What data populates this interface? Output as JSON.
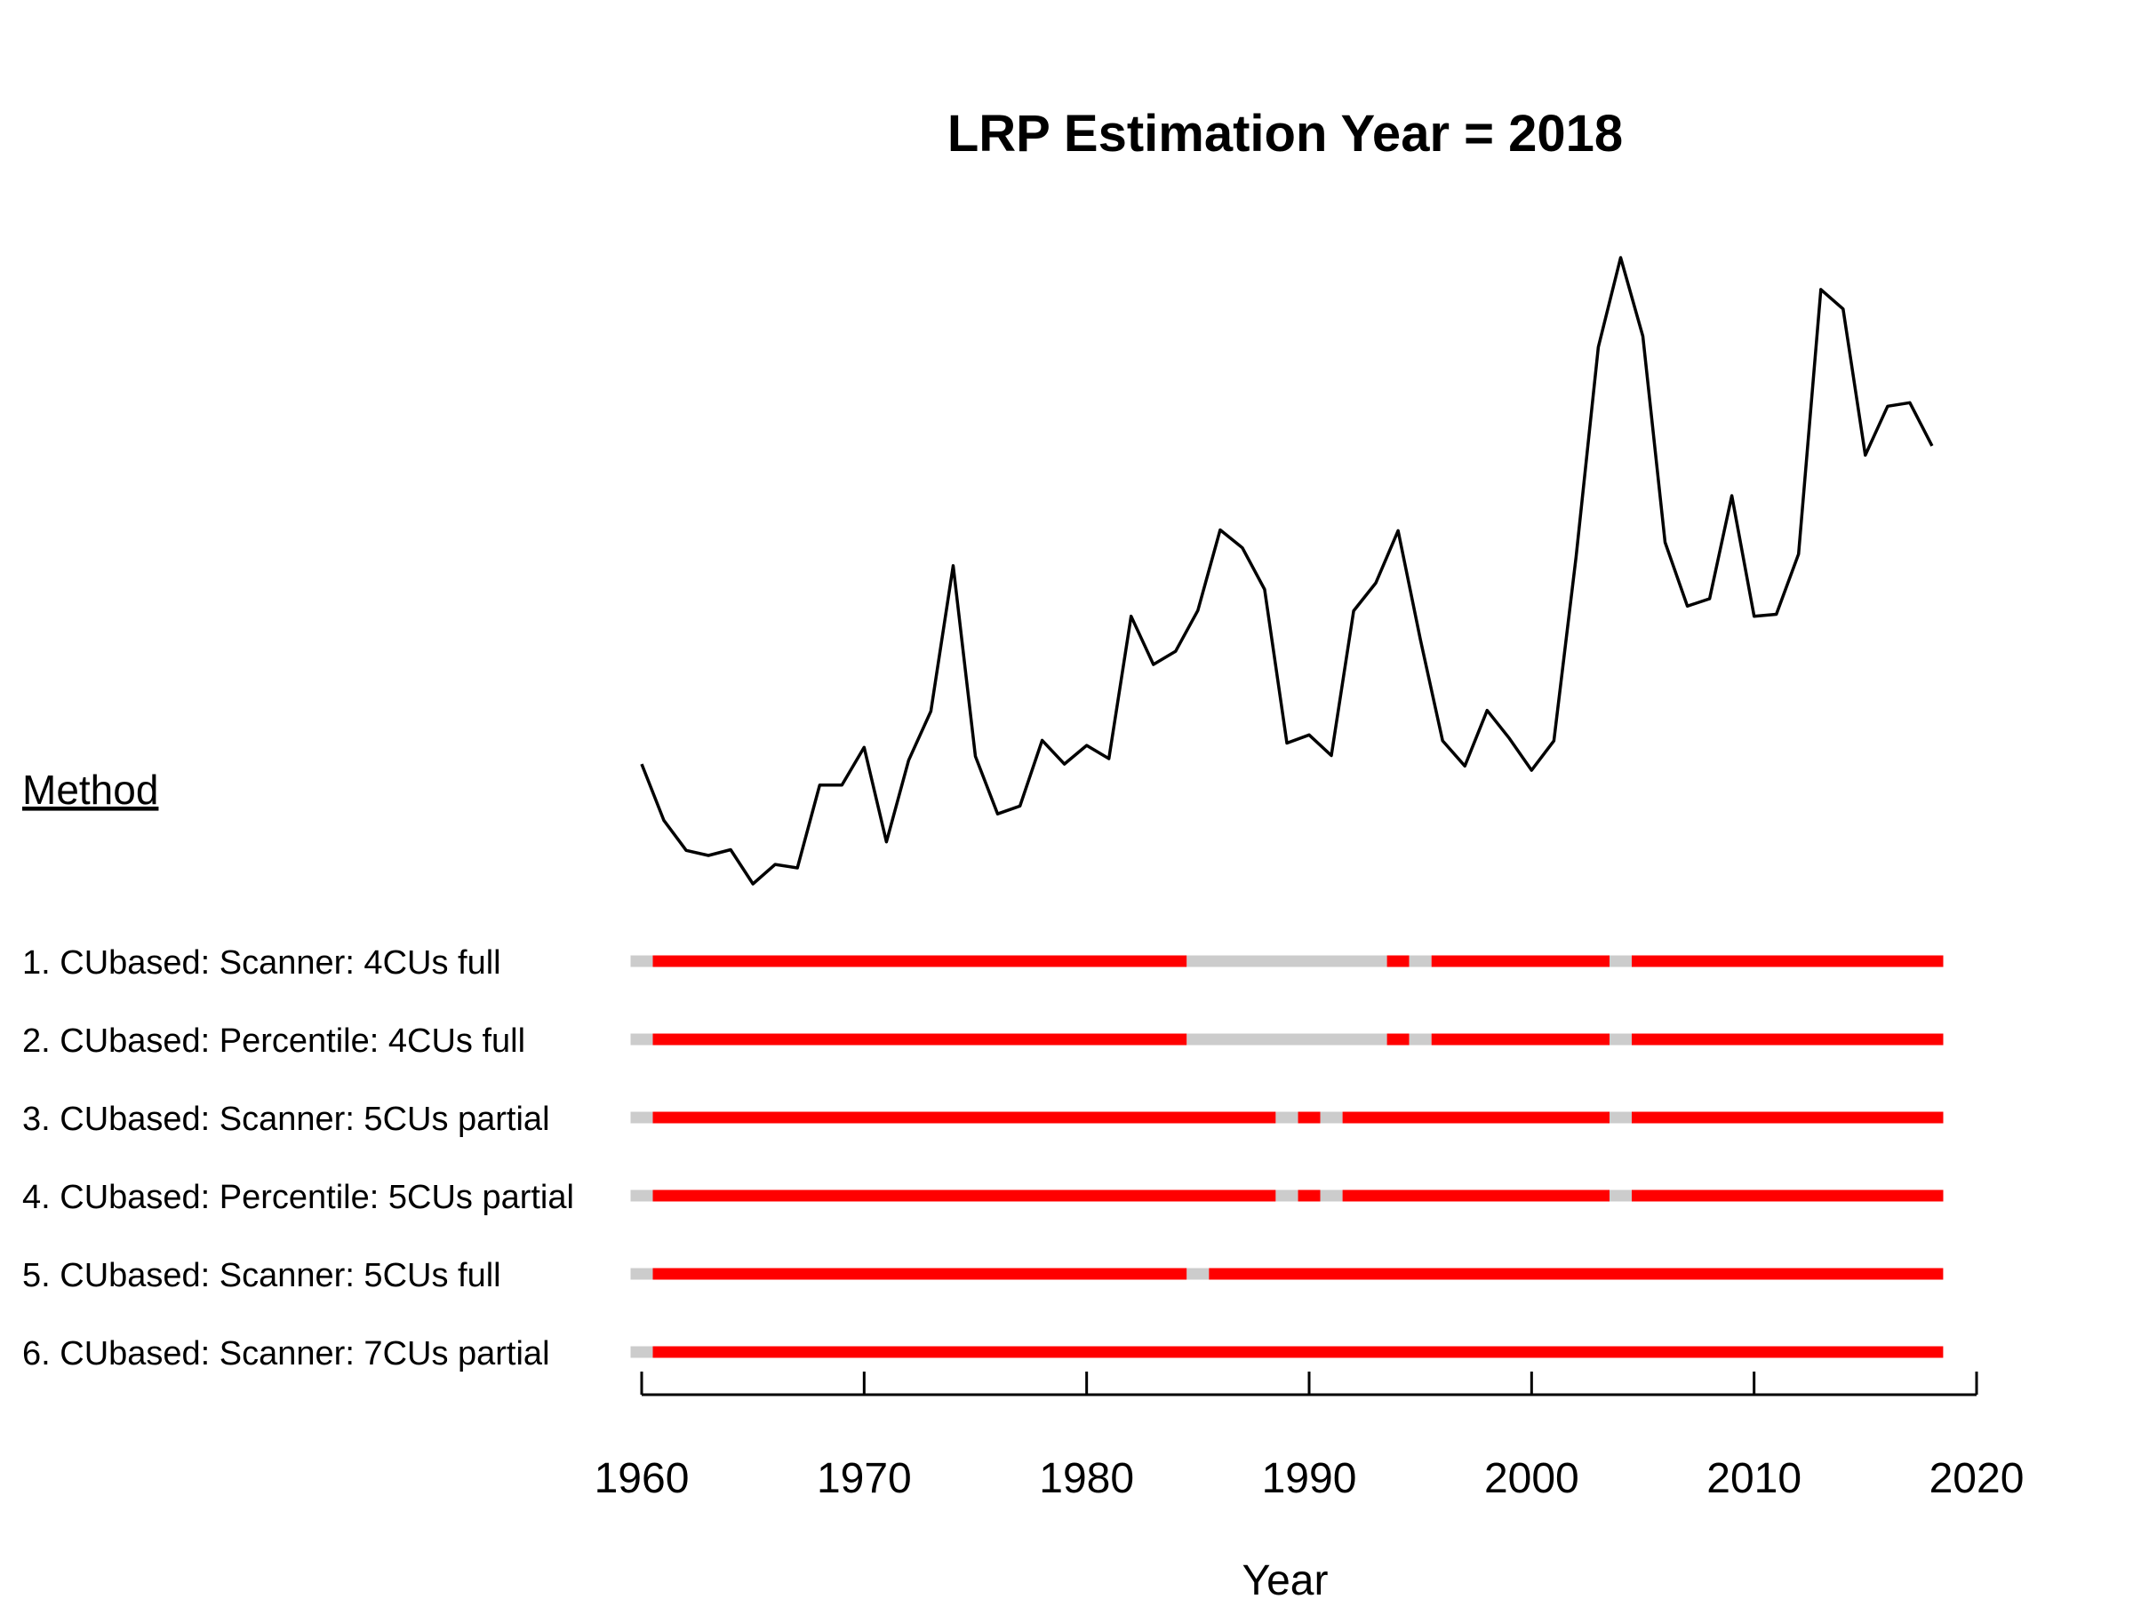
{
  "chart_data": {
    "type": "line",
    "title": "LRP Estimation Year = 2018",
    "xlabel": "Year",
    "ylabel": "",
    "xlim": [
      1960,
      2020
    ],
    "xticks": [
      "1960",
      "1970",
      "1980",
      "1990",
      "2000",
      "2010",
      "2020"
    ],
    "grid": false,
    "legend_header": "Method",
    "series": [
      {
        "x": [
          1960,
          1961,
          1962,
          1963,
          1964,
          1965,
          1966,
          1967,
          1968,
          1969,
          1970,
          1971,
          1972,
          1973,
          1974,
          1975,
          1976,
          1977,
          1978,
          1979,
          1980,
          1981,
          1982,
          1983,
          1984,
          1985,
          1986,
          1987,
          1988,
          1989,
          1990,
          1991,
          1992,
          1993,
          1994,
          1995,
          1996,
          1997,
          1998,
          1999,
          2000,
          2001,
          2002,
          2003,
          2004,
          2005,
          2006,
          2007,
          2008,
          2009,
          2010,
          2011,
          2012,
          2013,
          2014,
          2015,
          2016,
          2017,
          2018
        ],
        "values": [
          3.8,
          2.35,
          1.58,
          1.45,
          1.6,
          0.72,
          1.22,
          1.13,
          3.26,
          3.26,
          4.23,
          1.8,
          3.9,
          5.16,
          8.9,
          4.0,
          2.52,
          2.72,
          4.41,
          3.8,
          4.28,
          3.94,
          7.6,
          6.36,
          6.7,
          7.75,
          9.82,
          9.36,
          8.29,
          4.34,
          4.55,
          4.02,
          7.74,
          8.46,
          9.8,
          7.0,
          4.4,
          3.75,
          5.18,
          4.46,
          3.64,
          4.4,
          9.13,
          14.52,
          16.82,
          14.8,
          9.5,
          7.86,
          8.05,
          10.7,
          7.6,
          7.65,
          9.2,
          16.0,
          15.5,
          11.74,
          13.0,
          13.09,
          11.98
        ]
      }
    ],
    "methods": [
      {
        "label": "1. CUbased: Scanner: 4CUs full",
        "segments": [
          {
            "from": 1959.5,
            "to": 1960.5,
            "status": "na"
          },
          {
            "from": 1960.5,
            "to": 1984.5,
            "status": "red"
          },
          {
            "from": 1984.5,
            "to": 1993.5,
            "status": "na"
          },
          {
            "from": 1993.5,
            "to": 1994.5,
            "status": "red"
          },
          {
            "from": 1994.5,
            "to": 1995.5,
            "status": "na"
          },
          {
            "from": 1995.5,
            "to": 2003.5,
            "status": "red"
          },
          {
            "from": 2003.5,
            "to": 2004.5,
            "status": "na"
          },
          {
            "from": 2004.5,
            "to": 2018.5,
            "status": "red"
          }
        ]
      },
      {
        "label": "2. CUbased: Percentile: 4CUs full",
        "segments": [
          {
            "from": 1959.5,
            "to": 1960.5,
            "status": "na"
          },
          {
            "from": 1960.5,
            "to": 1984.5,
            "status": "red"
          },
          {
            "from": 1984.5,
            "to": 1993.5,
            "status": "na"
          },
          {
            "from": 1993.5,
            "to": 1994.5,
            "status": "red"
          },
          {
            "from": 1994.5,
            "to": 1995.5,
            "status": "na"
          },
          {
            "from": 1995.5,
            "to": 2003.5,
            "status": "red"
          },
          {
            "from": 2003.5,
            "to": 2004.5,
            "status": "na"
          },
          {
            "from": 2004.5,
            "to": 2018.5,
            "status": "red"
          }
        ]
      },
      {
        "label": "3. CUbased: Scanner: 5CUs partial",
        "segments": [
          {
            "from": 1959.5,
            "to": 1960.5,
            "status": "na"
          },
          {
            "from": 1960.5,
            "to": 1988.5,
            "status": "red"
          },
          {
            "from": 1988.5,
            "to": 1989.5,
            "status": "na"
          },
          {
            "from": 1989.5,
            "to": 1990.5,
            "status": "red"
          },
          {
            "from": 1990.5,
            "to": 1991.5,
            "status": "na"
          },
          {
            "from": 1991.5,
            "to": 2003.5,
            "status": "red"
          },
          {
            "from": 2003.5,
            "to": 2004.5,
            "status": "na"
          },
          {
            "from": 2004.5,
            "to": 2018.5,
            "status": "red"
          }
        ]
      },
      {
        "label": "4. CUbased: Percentile: 5CUs partial",
        "segments": [
          {
            "from": 1959.5,
            "to": 1960.5,
            "status": "na"
          },
          {
            "from": 1960.5,
            "to": 1988.5,
            "status": "red"
          },
          {
            "from": 1988.5,
            "to": 1989.5,
            "status": "na"
          },
          {
            "from": 1989.5,
            "to": 1990.5,
            "status": "red"
          },
          {
            "from": 1990.5,
            "to": 1991.5,
            "status": "na"
          },
          {
            "from": 1991.5,
            "to": 2003.5,
            "status": "red"
          },
          {
            "from": 2003.5,
            "to": 2004.5,
            "status": "na"
          },
          {
            "from": 2004.5,
            "to": 2018.5,
            "status": "red"
          }
        ]
      },
      {
        "label": "5. CUbased: Scanner: 5CUs full",
        "segments": [
          {
            "from": 1959.5,
            "to": 1960.5,
            "status": "na"
          },
          {
            "from": 1960.5,
            "to": 1984.5,
            "status": "red"
          },
          {
            "from": 1984.5,
            "to": 1985.5,
            "status": "na"
          },
          {
            "from": 1985.5,
            "to": 2018.5,
            "status": "red"
          }
        ]
      },
      {
        "label": "6. CUbased: Scanner: 7CUs partial",
        "segments": [
          {
            "from": 1959.5,
            "to": 1960.5,
            "status": "na"
          },
          {
            "from": 1960.5,
            "to": 2018.5,
            "status": "red"
          }
        ]
      }
    ],
    "colors": {
      "line": "#000000",
      "red": "#ff0000",
      "na": "#cccccc"
    }
  }
}
